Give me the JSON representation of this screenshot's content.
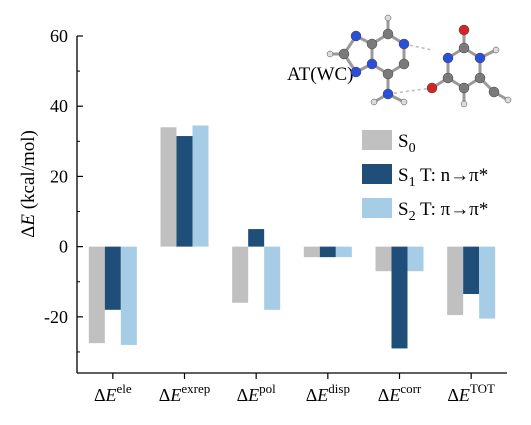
{
  "chart_data": {
    "type": "bar",
    "categories": [
      {
        "base": "ΔE",
        "sup": "ele"
      },
      {
        "base": "ΔE",
        "sup": "exrep"
      },
      {
        "base": "ΔE",
        "sup": "pol"
      },
      {
        "base": "ΔE",
        "sup": "disp"
      },
      {
        "base": "ΔE",
        "sup": "corr"
      },
      {
        "base": "ΔE",
        "sup": "TOT"
      }
    ],
    "series": [
      {
        "name": "S0",
        "name_main": "S",
        "name_sub": "0",
        "name_rest": "",
        "color": "#c0c0c0",
        "values": [
          -27.5,
          34,
          -16,
          -3,
          -7,
          -19.5
        ]
      },
      {
        "name": "S1 T: n→π*",
        "name_main": "S",
        "name_sub": "1",
        "name_rest": " T: n→π*",
        "color": "#1f4e79",
        "values": [
          -18,
          31.5,
          5,
          -3,
          -29,
          -13.5
        ]
      },
      {
        "name": "S2 T: π→π*",
        "name_main": "S",
        "name_sub": "2",
        "name_rest": " T: π→π*",
        "color": "#a6cde5",
        "values": [
          -28,
          34.5,
          -18,
          -3,
          -7,
          -20.5
        ]
      }
    ],
    "ylabel": {
      "prefix": "Δ",
      "italic": "E",
      "suffix": " (kcal/mol)"
    },
    "yticks": [
      -20,
      0,
      20,
      40,
      60
    ],
    "ylim": [
      -36,
      60
    ],
    "inset_label": "AT(WC)",
    "legend_position": "right-middle",
    "grid": false
  }
}
